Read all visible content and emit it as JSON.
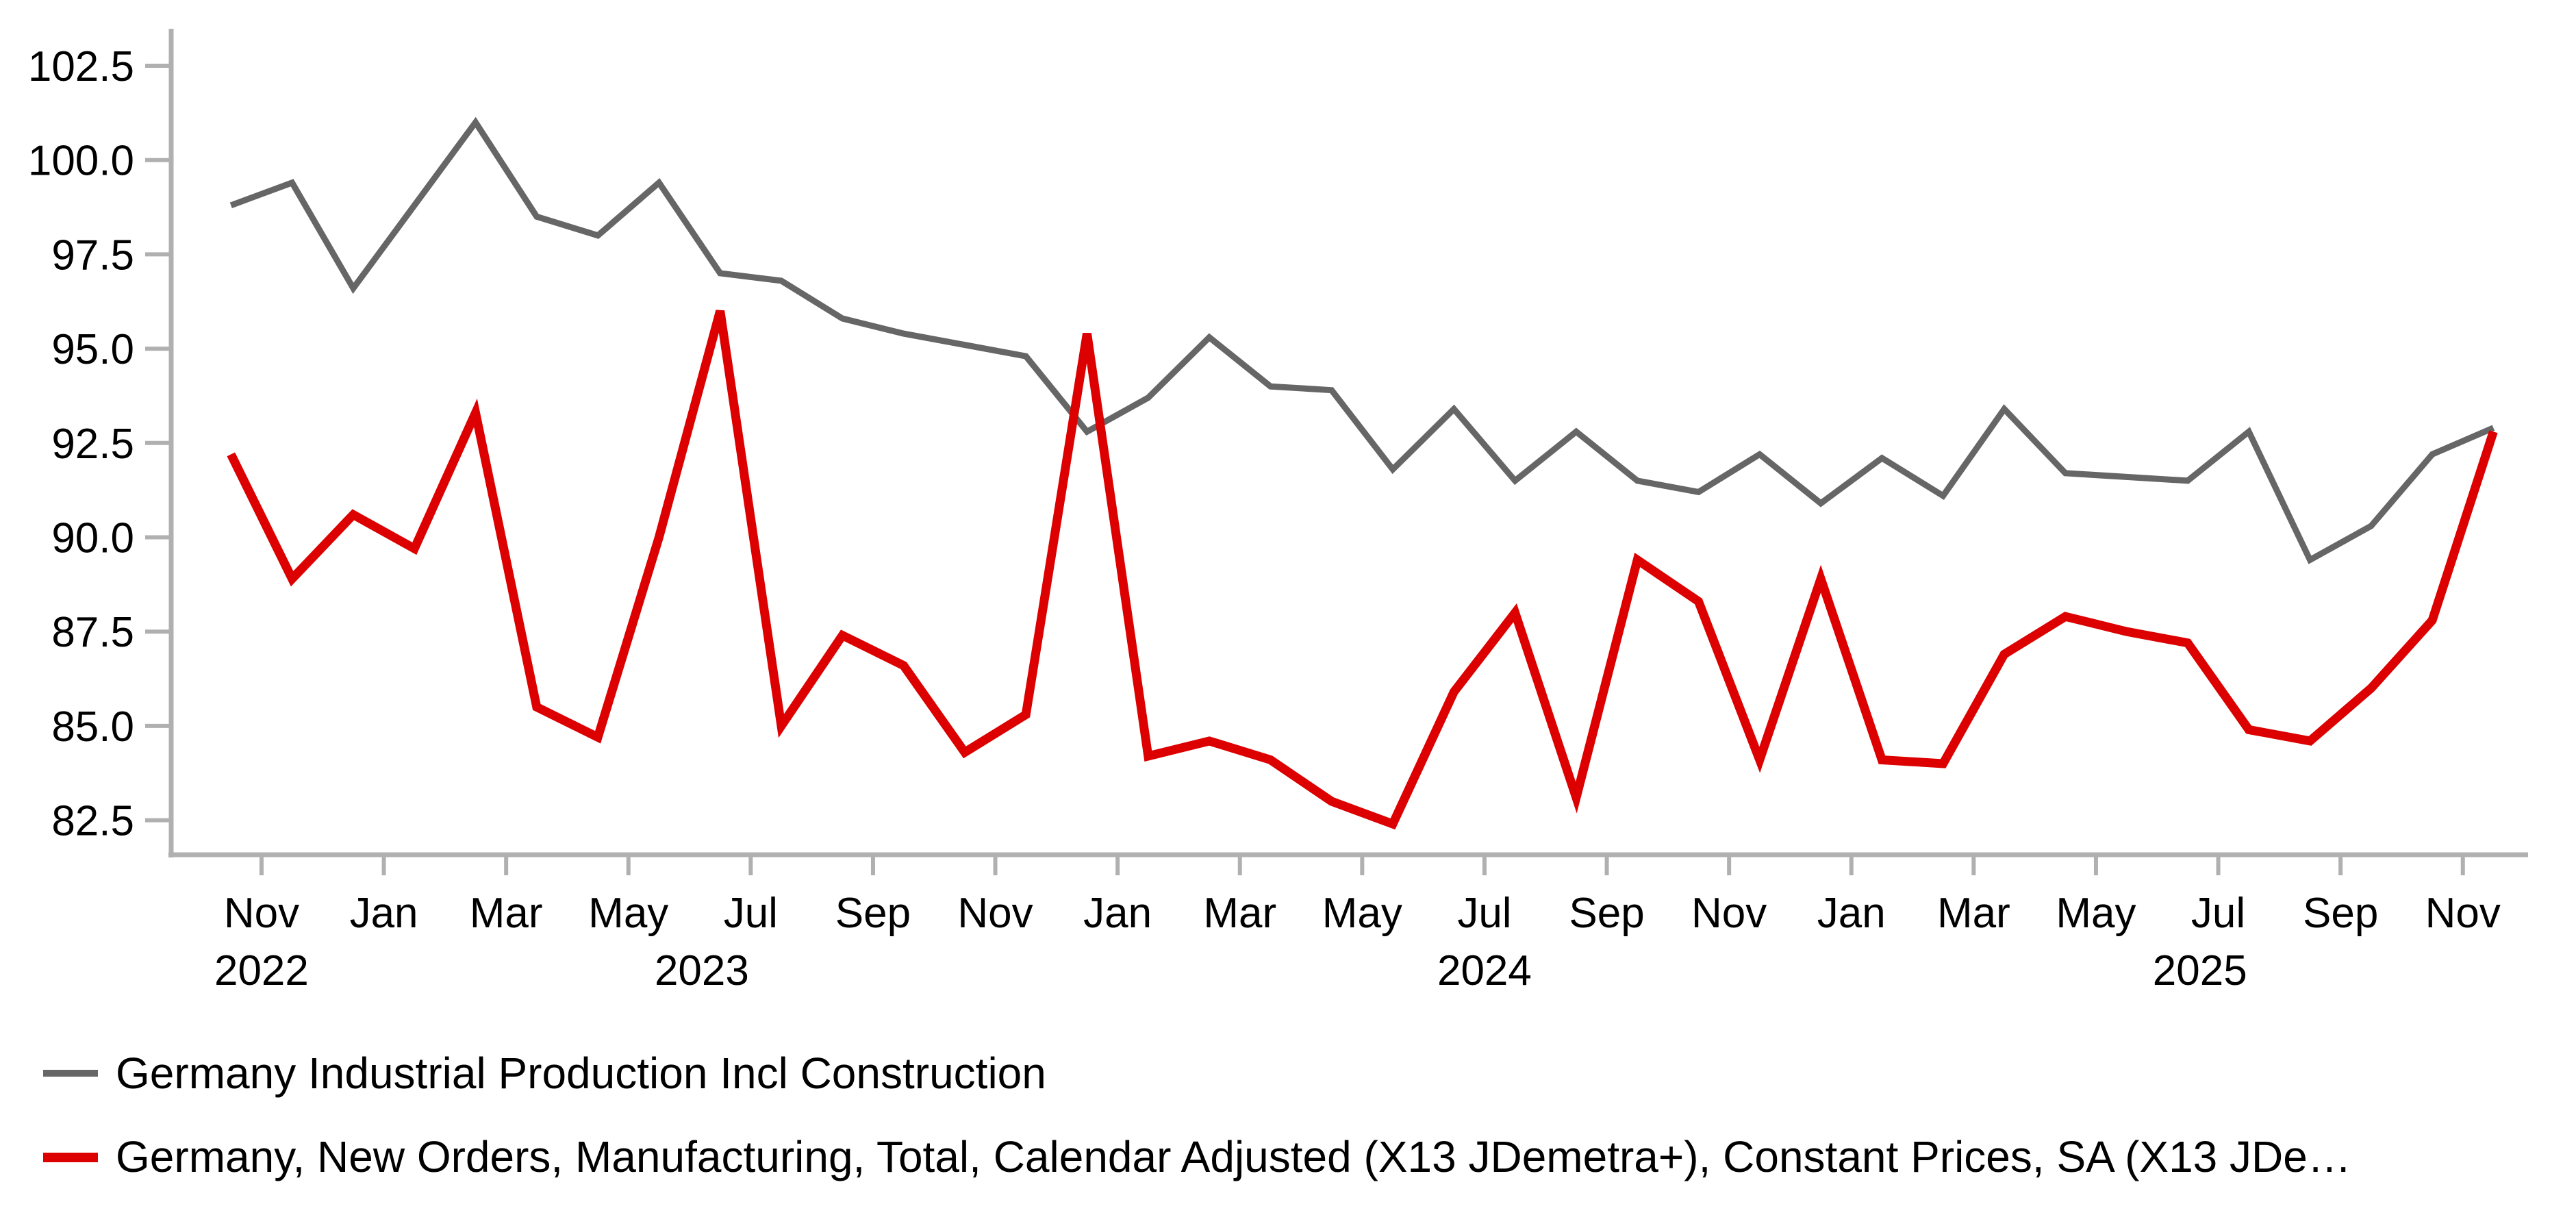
{
  "chart_data": {
    "type": "line",
    "title": "",
    "xlabel": "",
    "ylabel": "",
    "grid": false,
    "legend_position": "bottom-left",
    "ylim": [
      81.7,
      103.6
    ],
    "y_ticks": [
      {
        "value": 102.5,
        "label": "102.5"
      },
      {
        "value": 100.0,
        "label": "100.0"
      },
      {
        "value": 97.5,
        "label": "97.5"
      },
      {
        "value": 95.0,
        "label": "95.0"
      },
      {
        "value": 92.5,
        "label": "92.5"
      },
      {
        "value": 90.0,
        "label": "90.0"
      },
      {
        "value": 87.5,
        "label": "87.5"
      },
      {
        "value": 85.0,
        "label": "85.0"
      },
      {
        "value": 82.5,
        "label": "82.5"
      }
    ],
    "x_ticks": [
      {
        "pos": 1,
        "label": "Nov"
      },
      {
        "pos": 3,
        "label": "Jan"
      },
      {
        "pos": 5,
        "label": "Mar"
      },
      {
        "pos": 7,
        "label": "May"
      },
      {
        "pos": 9,
        "label": "Jul"
      },
      {
        "pos": 11,
        "label": "Sep"
      },
      {
        "pos": 13,
        "label": "Nov"
      },
      {
        "pos": 15,
        "label": "Jan"
      },
      {
        "pos": 17,
        "label": "Mar"
      },
      {
        "pos": 19,
        "label": "May"
      },
      {
        "pos": 21,
        "label": "Jul"
      },
      {
        "pos": 23,
        "label": "Sep"
      },
      {
        "pos": 25,
        "label": "Nov"
      },
      {
        "pos": 27,
        "label": "Jan"
      },
      {
        "pos": 29,
        "label": "Mar"
      },
      {
        "pos": 31,
        "label": "May"
      },
      {
        "pos": 33,
        "label": "Jul"
      },
      {
        "pos": 35,
        "label": "Sep"
      },
      {
        "pos": 37,
        "label": "Nov"
      }
    ],
    "year_labels": [
      {
        "pos": 1,
        "label": "2022"
      },
      {
        "pos": 8.2,
        "label": "2023"
      },
      {
        "pos": 21,
        "label": "2024"
      },
      {
        "pos": 32.7,
        "label": "2025"
      }
    ],
    "categories": [
      "Oct 2022",
      "Nov 2022",
      "Dec 2022",
      "Jan 2023",
      "Feb 2023",
      "Mar 2023",
      "Apr 2023",
      "May 2023",
      "Jun 2023",
      "Jul 2023",
      "Aug 2023",
      "Sep 2023",
      "Oct 2023",
      "Nov 2023",
      "Dec 2023",
      "Jan 2024",
      "Feb 2024",
      "Mar 2024",
      "Apr 2024",
      "May 2024",
      "Jun 2024",
      "Jul 2024",
      "Aug 2024",
      "Sep 2024",
      "Oct 2024",
      "Nov 2024",
      "Dec 2024",
      "Jan 2025",
      "Feb 2025",
      "Mar 2025",
      "Apr 2025",
      "May 2025",
      "Jun 2025",
      "Jul 2025",
      "Aug 2025",
      "Sep 2025",
      "Oct 2025",
      "Nov 2025"
    ],
    "series": [
      {
        "name": "Germany Industrial Production Incl Construction",
        "color": "#666666",
        "line_width": 9,
        "values": [
          98.8,
          99.4,
          96.6,
          98.8,
          101.0,
          98.5,
          98.0,
          99.4,
          97.0,
          96.8,
          95.8,
          95.4,
          95.1,
          94.8,
          92.8,
          93.7,
          95.3,
          94.0,
          93.9,
          91.8,
          93.4,
          91.5,
          92.8,
          91.5,
          91.2,
          92.2,
          90.9,
          92.1,
          91.1,
          93.4,
          91.7,
          91.6,
          91.5,
          92.8,
          89.4,
          90.3,
          92.2,
          92.9
        ]
      },
      {
        "name": "Germany, New Orders, Manufacturing, Total, Calendar Adjusted (X13 JDemetra+), Constant Prices, SA (X13 JDe…",
        "color": "#dd0000",
        "line_width": 13,
        "values": [
          92.2,
          88.9,
          90.6,
          89.7,
          93.3,
          85.5,
          84.7,
          90.0,
          96.0,
          85.0,
          87.4,
          86.6,
          84.3,
          85.3,
          95.4,
          84.2,
          84.6,
          84.1,
          83.0,
          82.4,
          85.9,
          88.0,
          83.1,
          89.4,
          88.3,
          84.1,
          88.9,
          84.1,
          84.0,
          86.9,
          87.9,
          87.5,
          87.2,
          84.9,
          84.6,
          86.0,
          87.8,
          92.8
        ]
      }
    ],
    "style": {
      "axis_color": "#b0b0b0",
      "text_color": "#000000",
      "background": "#ffffff"
    }
  },
  "legend": {
    "items": [
      {
        "label": "Germany Industrial Production Incl Construction",
        "color": "#666666",
        "dash_height": 10
      },
      {
        "label": "Germany, New Orders, Manufacturing, Total, Calendar Adjusted (X13 JDemetra+), Constant Prices, SA (X13 JDe…",
        "color": "#dd0000",
        "dash_height": 14
      }
    ]
  }
}
